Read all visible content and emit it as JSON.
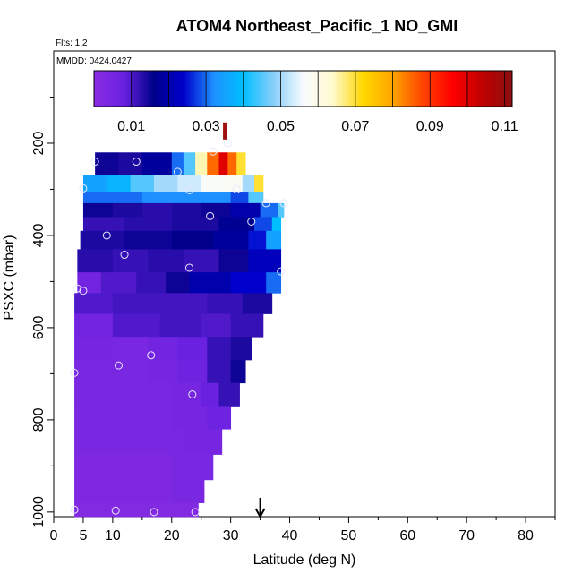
{
  "chart_data": {
    "type": "heatmap",
    "title": "ATOM4 Northeast_Pacific_1 NO_GMI",
    "annotations": {
      "flights": "Flts: 1,2",
      "dates": "MMDD: 0424,0427"
    },
    "xlabel": "Latitude (deg N)",
    "ylabel": "PSXC (mbar)",
    "xlim": [
      0,
      85
    ],
    "ylim": [
      1010,
      0
    ],
    "x_ticks": [
      0,
      5,
      10,
      20,
      30,
      40,
      50,
      60,
      70,
      80
    ],
    "x_minor_ticks": [
      15,
      25,
      35,
      45,
      55,
      65,
      75,
      85
    ],
    "y_ticks": [
      200,
      400,
      600,
      800,
      1000
    ],
    "y_minor_ticks": [
      100,
      300,
      500,
      700,
      900
    ],
    "colorbar": {
      "range": [
        0,
        0.112
      ],
      "tick_values": [
        0.01,
        0.03,
        0.05,
        0.07,
        0.09,
        0.11
      ],
      "tick_labels": [
        "0.01",
        "0.03",
        "0.05",
        "0.07",
        "0.09",
        "0.11"
      ],
      "stops": [
        "#8a2be2",
        "#6a22e0",
        "#00008b",
        "#0000cd",
        "#1e90ff",
        "#00bfff",
        "#87cefa",
        "#f8fbff",
        "#fffacd",
        "#ffd700",
        "#ffa500",
        "#ff4500",
        "#ff0000",
        "#c00000",
        "#8b1010"
      ]
    },
    "rows": [
      {
        "p": 220,
        "x_start": 7,
        "segments": [
          [
            7,
            0.015
          ],
          [
            11,
            0.014
          ],
          [
            15,
            0.018
          ],
          [
            20,
            0.03
          ],
          [
            22,
            0.045
          ],
          [
            24,
            0.065
          ],
          [
            26,
            0.085
          ],
          [
            28,
            0.1
          ],
          [
            29.5,
            0.085
          ],
          [
            31,
            0.07
          ],
          [
            32.5,
            null
          ]
        ]
      },
      {
        "p": 270,
        "x_start": 5,
        "segments": [
          [
            5,
            0.035
          ],
          [
            9,
            0.038
          ],
          [
            13,
            0.045
          ],
          [
            17,
            0.05
          ],
          [
            21,
            0.053
          ],
          [
            25,
            0.057
          ],
          [
            29,
            0.058
          ],
          [
            32,
            0.05
          ],
          [
            34,
            0.07
          ],
          [
            35.5,
            null
          ]
        ]
      },
      {
        "p": 305,
        "x_start": 5,
        "segments": [
          [
            5,
            0.03
          ],
          [
            10,
            0.03
          ],
          [
            15,
            0.032
          ],
          [
            20,
            0.032
          ],
          [
            25,
            0.032
          ],
          [
            30,
            0.028
          ],
          [
            33,
            0.045
          ],
          [
            35.5,
            null
          ]
        ]
      },
      {
        "p": 330,
        "x_start": 5,
        "segments": [
          [
            5,
            0.015
          ],
          [
            10,
            0.014
          ],
          [
            15,
            0.013
          ],
          [
            20,
            0.014
          ],
          [
            25,
            0.015
          ],
          [
            30,
            0.02
          ],
          [
            35,
            0.03
          ],
          [
            38,
            0.045
          ],
          [
            39,
            null
          ]
        ]
      },
      {
        "p": 360,
        "x_start": 5,
        "segments": [
          [
            5,
            0.012
          ],
          [
            12,
            0.013
          ],
          [
            20,
            0.014
          ],
          [
            28,
            0.017
          ],
          [
            34,
            0.028
          ],
          [
            37,
            0.04
          ],
          [
            38.5,
            null
          ]
        ]
      },
      {
        "p": 390,
        "x_start": 4.5,
        "segments": [
          [
            4.5,
            0.014
          ],
          [
            12,
            0.015
          ],
          [
            20,
            0.016
          ],
          [
            27,
            0.018
          ],
          [
            33,
            0.025
          ],
          [
            36,
            0.035
          ],
          [
            38.5,
            null
          ]
        ]
      },
      {
        "p": 430,
        "x_start": 4,
        "segments": [
          [
            4,
            0.013
          ],
          [
            10,
            0.012
          ],
          [
            16,
            0.013
          ],
          [
            22,
            0.012
          ],
          [
            28,
            0.015
          ],
          [
            33,
            0.022
          ],
          [
            38.5,
            null
          ]
        ]
      },
      {
        "p": 480,
        "x_start": 4,
        "segments": [
          [
            4,
            0.006
          ],
          [
            8,
            0.01
          ],
          [
            14,
            0.012
          ],
          [
            19,
            0.015
          ],
          [
            23,
            0.02
          ],
          [
            30,
            0.024
          ],
          [
            36,
            0.03
          ],
          [
            38.5,
            null
          ]
        ]
      },
      {
        "p": 525,
        "x_start": 3.5,
        "segments": [
          [
            3.5,
            0.01
          ],
          [
            10,
            0.011
          ],
          [
            18,
            0.011
          ],
          [
            26,
            0.012
          ],
          [
            32,
            0.014
          ],
          [
            37,
            null
          ]
        ]
      },
      {
        "p": 570,
        "x_start": 3.5,
        "segments": [
          [
            3.5,
            0.006
          ],
          [
            10,
            0.01
          ],
          [
            18,
            0.011
          ],
          [
            25,
            0.01
          ],
          [
            30,
            0.012
          ],
          [
            35.5,
            null
          ]
        ]
      },
      {
        "p": 620,
        "x_start": 3.5,
        "segments": [
          [
            3.5,
            0.005
          ],
          [
            10,
            0.004
          ],
          [
            16,
            0.006
          ],
          [
            21,
            0.008
          ],
          [
            26,
            0.012
          ],
          [
            30,
            0.014
          ],
          [
            33.5,
            null
          ]
        ]
      },
      {
        "p": 670,
        "x_start": 3.5,
        "segments": [
          [
            3.5,
            0.004
          ],
          [
            10,
            0.004
          ],
          [
            16,
            0.005
          ],
          [
            21,
            0.007
          ],
          [
            26,
            0.012
          ],
          [
            30,
            0.015
          ],
          [
            32.5,
            null
          ]
        ]
      },
      {
        "p": 720,
        "x_start": 3.5,
        "segments": [
          [
            3.5,
            0.004
          ],
          [
            12,
            0.004
          ],
          [
            20,
            0.005
          ],
          [
            25,
            0.008
          ],
          [
            28,
            0.012
          ],
          [
            31.5,
            null
          ]
        ]
      },
      {
        "p": 770,
        "x_start": 3.5,
        "segments": [
          [
            3.5,
            0.004
          ],
          [
            12,
            0.004
          ],
          [
            20,
            0.005
          ],
          [
            26,
            0.007
          ],
          [
            30,
            null
          ]
        ]
      },
      {
        "p": 820,
        "x_start": 3.5,
        "segments": [
          [
            3.5,
            0.004
          ],
          [
            14,
            0.004
          ],
          [
            22,
            0.005
          ],
          [
            28.5,
            null
          ]
        ]
      },
      {
        "p": 875,
        "x_start": 3.5,
        "segments": [
          [
            3.5,
            0.003
          ],
          [
            12,
            0.003
          ],
          [
            20,
            0.004
          ],
          [
            27,
            null
          ]
        ]
      },
      {
        "p": 930,
        "x_start": 3.5,
        "segments": [
          [
            3.5,
            0.003
          ],
          [
            12,
            0.003
          ],
          [
            20,
            0.004
          ],
          [
            25.5,
            null
          ]
        ]
      },
      {
        "p": 980,
        "x_start": 3.5,
        "segments": [
          [
            3.5,
            0.002
          ],
          [
            12,
            0.002
          ],
          [
            24.5,
            null
          ]
        ]
      },
      {
        "p": 1010,
        "x_start": 3.5,
        "segments": []
      }
    ],
    "points": [
      [
        29.5,
        200
      ],
      [
        7,
        240
      ],
      [
        14,
        240
      ],
      [
        21,
        262
      ],
      [
        27,
        218
      ],
      [
        5,
        298
      ],
      [
        23,
        302
      ],
      [
        31,
        300
      ],
      [
        36,
        330
      ],
      [
        39,
        330
      ],
      [
        26.5,
        358
      ],
      [
        33.5,
        370
      ],
      [
        9,
        400
      ],
      [
        12,
        442
      ],
      [
        23,
        470
      ],
      [
        38.5,
        478
      ],
      [
        4,
        515
      ],
      [
        5,
        520
      ],
      [
        16.5,
        660
      ],
      [
        11,
        682
      ],
      [
        3.5,
        698
      ],
      [
        23.5,
        745
      ],
      [
        3.5,
        995
      ],
      [
        10.5,
        997
      ],
      [
        17,
        1000
      ],
      [
        24,
        1000
      ]
    ],
    "bar_marker": {
      "x": 29,
      "p_top": 155,
      "p_bottom": 192,
      "color": "#a01010"
    },
    "arrow_marker": {
      "x": 35,
      "direction": "down"
    }
  }
}
